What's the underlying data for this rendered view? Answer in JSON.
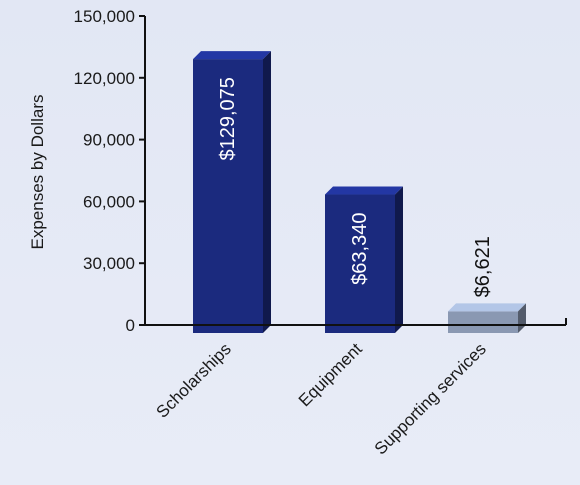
{
  "chart_data": {
    "type": "bar",
    "title": "",
    "xlabel": "",
    "ylabel": "Expenses by Dollars",
    "ylim": [
      0,
      150000
    ],
    "yticks": [
      0,
      30000,
      60000,
      90000,
      120000,
      150000
    ],
    "ytick_labels": [
      "0",
      "30,000",
      "60,000",
      "90,000",
      "120,000",
      "150,000"
    ],
    "categories": [
      "Scholarships",
      "Equipment",
      "Supporting services"
    ],
    "values": [
      129075,
      63340,
      6621
    ],
    "value_labels": [
      "$129,075",
      "$63,340",
      "$6,621"
    ],
    "bar_colors": [
      "#1b2a7e",
      "#1b2a7e",
      "#8a98b2"
    ],
    "grid": false,
    "style": "3d"
  }
}
